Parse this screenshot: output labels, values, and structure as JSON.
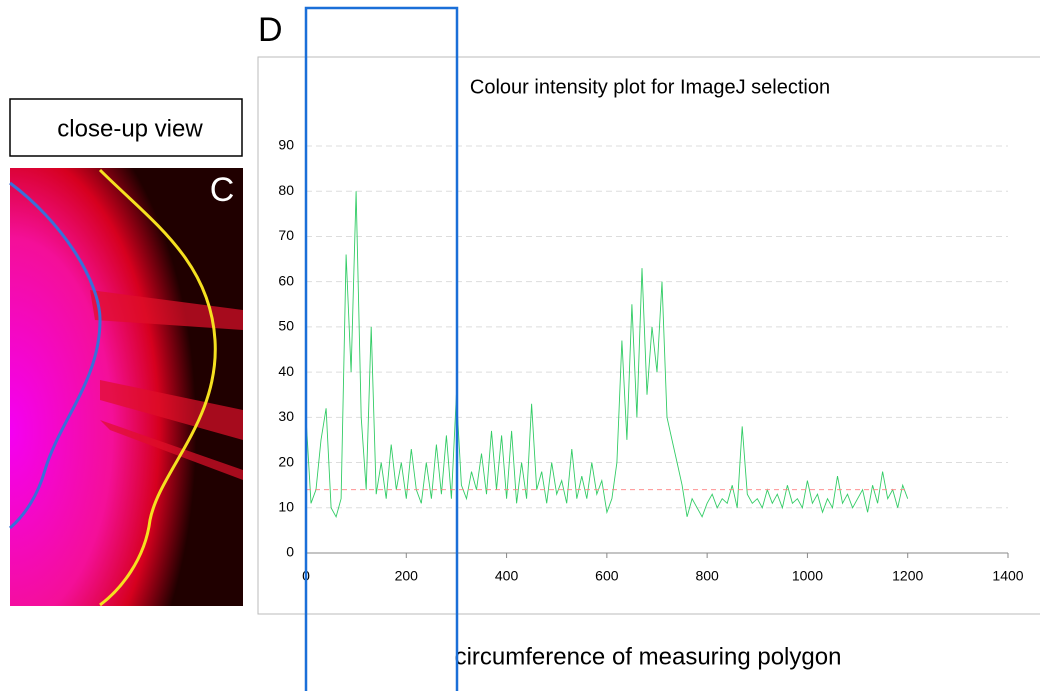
{
  "panel_label_d": "D",
  "panel_label_c": "C",
  "inset_label": "close-up view",
  "chart_data": {
    "type": "line",
    "title": "Colour intensity plot for ImageJ selection",
    "x_label": "circumference of measuring polygon",
    "xlim": [
      0,
      1400
    ],
    "xticks": [
      0,
      200,
      400,
      600,
      800,
      1000,
      1200,
      1400
    ],
    "ylim": [
      0,
      90
    ],
    "yticks": [
      0,
      10,
      20,
      30,
      40,
      50,
      60,
      70,
      80,
      90
    ],
    "grid": true,
    "series": [
      {
        "color": "#33cc66",
        "dashed": false,
        "x": [
          0,
          10,
          20,
          30,
          40,
          50,
          60,
          70,
          80,
          90,
          100,
          110,
          120,
          130,
          140,
          150,
          160,
          170,
          180,
          190,
          200,
          210,
          220,
          230,
          240,
          250,
          260,
          270,
          280,
          290,
          300,
          310,
          320,
          330,
          340,
          350,
          360,
          370,
          380,
          390,
          400,
          410,
          420,
          430,
          440,
          450,
          460,
          470,
          480,
          490,
          500,
          510,
          520,
          530,
          540,
          550,
          560,
          570,
          580,
          590,
          600,
          610,
          620,
          630,
          640,
          650,
          660,
          670,
          680,
          690,
          700,
          710,
          720,
          730,
          740,
          750,
          760,
          770,
          780,
          790,
          800,
          810,
          820,
          830,
          840,
          850,
          860,
          870,
          880,
          890,
          900,
          910,
          920,
          930,
          940,
          950,
          960,
          970,
          980,
          990,
          1000,
          1010,
          1020,
          1030,
          1040,
          1050,
          1060,
          1070,
          1080,
          1090,
          1100,
          1110,
          1120,
          1130,
          1140,
          1150,
          1160,
          1170,
          1180,
          1190,
          1200
        ],
        "values": [
          30,
          11,
          14,
          25,
          32,
          10,
          8,
          12,
          66,
          40,
          80,
          30,
          14,
          50,
          13,
          20,
          12,
          24,
          14,
          20,
          12,
          23,
          14,
          11,
          20,
          12,
          24,
          13,
          26,
          12,
          35,
          15,
          12,
          18,
          14,
          22,
          13,
          27,
          14,
          26,
          12,
          27,
          11,
          20,
          12,
          33,
          14,
          18,
          11,
          20,
          13,
          16,
          11,
          23,
          12,
          17,
          12,
          20,
          13,
          16,
          9,
          12,
          20,
          47,
          25,
          55,
          30,
          63,
          35,
          50,
          40,
          60,
          30,
          25,
          20,
          15,
          8,
          12,
          10,
          8,
          11,
          13,
          10,
          12,
          11,
          15,
          10,
          28,
          13,
          11,
          12,
          10,
          14,
          11,
          13,
          10,
          15,
          11,
          12,
          10,
          16,
          11,
          13,
          9,
          12,
          10,
          17,
          11,
          13,
          10,
          12,
          14,
          9,
          15,
          11,
          18,
          12,
          14,
          10,
          15,
          12
        ]
      },
      {
        "color": "#ff8080",
        "dashed": true,
        "x": [
          0,
          1200
        ],
        "values": [
          14,
          14
        ]
      }
    ]
  }
}
